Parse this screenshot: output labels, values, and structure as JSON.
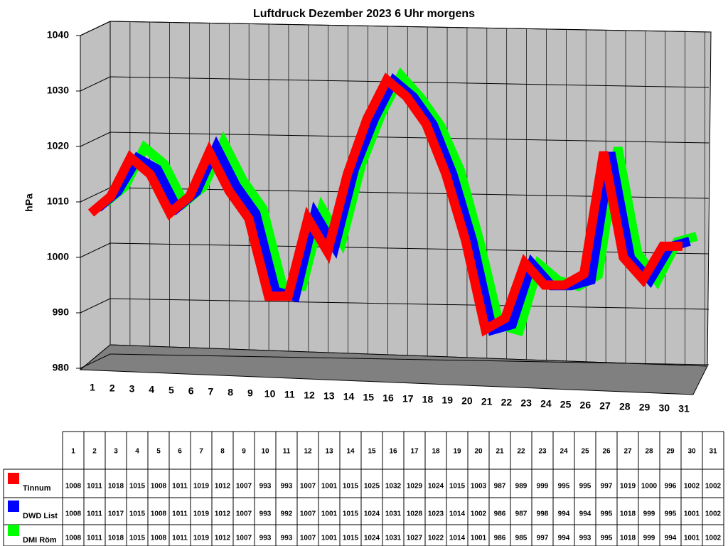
{
  "chart_data": {
    "type": "line3d",
    "title": "Luftdruck Dezember 2023 6 Uhr morgens",
    "y_label": "hPa",
    "categories": [
      "1",
      "2",
      "3",
      "4",
      "5",
      "6",
      "7",
      "8",
      "9",
      "10",
      "11",
      "12",
      "13",
      "14",
      "15",
      "16",
      "17",
      "18",
      "19",
      "20",
      "21",
      "22",
      "23",
      "24",
      "25",
      "26",
      "27",
      "28",
      "29",
      "30",
      "31"
    ],
    "ylim": [
      980,
      1040
    ],
    "yticks": [
      980,
      990,
      1000,
      1010,
      1020,
      1030,
      1040
    ],
    "grid": true,
    "series": [
      {
        "name": "Tinnum",
        "color": "#ff0000",
        "values": [
          1008,
          1011,
          1018,
          1015,
          1008,
          1011,
          1019,
          1012,
          1007,
          993,
          993,
          1007,
          1001,
          1015,
          1025,
          1032,
          1029,
          1024,
          1015,
          1003,
          987,
          989,
          999,
          995,
          995,
          997,
          1019,
          1000,
          996,
          1002,
          1002
        ]
      },
      {
        "name": "DWD List",
        "color": "#0000ff",
        "values": [
          1008,
          1011,
          1017,
          1015,
          1008,
          1011,
          1019,
          1012,
          1007,
          993,
          992,
          1007,
          1001,
          1015,
          1024,
          1031,
          1028,
          1023,
          1014,
          1002,
          986,
          987,
          998,
          994,
          994,
          995,
          1018,
          999,
          995,
          1001,
          1002
        ]
      },
      {
        "name": "DMI Röm",
        "color": "#00ff00",
        "values": [
          1008,
          1011,
          1018,
          1015,
          1008,
          1011,
          1019,
          1012,
          1007,
          993,
          993,
          1007,
          1001,
          1015,
          1024,
          1031,
          1027,
          1022,
          1014,
          1001,
          986,
          985,
          997,
          994,
          993,
          995,
          1018,
          999,
          994,
          1001,
          1002
        ]
      }
    ]
  }
}
